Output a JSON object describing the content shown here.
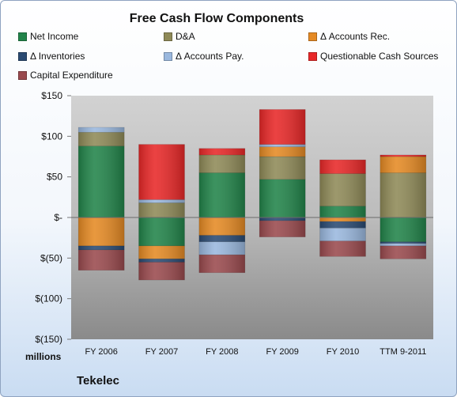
{
  "chart_data": {
    "type": "bar",
    "stacked": true,
    "title": "Free Cash Flow Components",
    "categories": [
      "FY 2006",
      "FY 2007",
      "FY 2008",
      "FY 2009",
      "FY 2010",
      "TTM 9-2011"
    ],
    "y_ticks": [
      "$150",
      "$100",
      "$50",
      "$-",
      "$(50)",
      "$(100)",
      "$(150)"
    ],
    "y_tick_values": [
      150,
      100,
      50,
      0,
      -50,
      -100,
      -150
    ],
    "ylim": [
      -150,
      150
    ],
    "ylabel_units": "millions",
    "grid": false,
    "legend_position": "top",
    "series": [
      {
        "name": "Net Income",
        "color": "#22844a",
        "values": [
          88,
          -35,
          55,
          47,
          14,
          -30
        ]
      },
      {
        "name": "D&A",
        "color": "#8f8a58",
        "values": [
          17,
          18,
          22,
          28,
          40,
          55
        ]
      },
      {
        "name": "Δ Accounts Rec.",
        "color": "#e58a24",
        "values": [
          -35,
          -16,
          -22,
          12,
          -5,
          20
        ]
      },
      {
        "name": "Δ Inventories",
        "color": "#2a4a72",
        "values": [
          -5,
          -4,
          -8,
          -4,
          -8,
          -2
        ]
      },
      {
        "name": "Δ Accounts Pay.",
        "color": "#9ab8de",
        "values": [
          6,
          4,
          -16,
          3,
          -16,
          -3
        ]
      },
      {
        "name": "Questionable Cash Sources",
        "color": "#e82828",
        "values": [
          0,
          68,
          8,
          43,
          17,
          2
        ]
      },
      {
        "name": "Capital Expenditure",
        "color": "#9a4a4e",
        "values": [
          -25,
          -22,
          -22,
          -20,
          -19,
          -16
        ]
      }
    ]
  },
  "company": "Tekelec"
}
